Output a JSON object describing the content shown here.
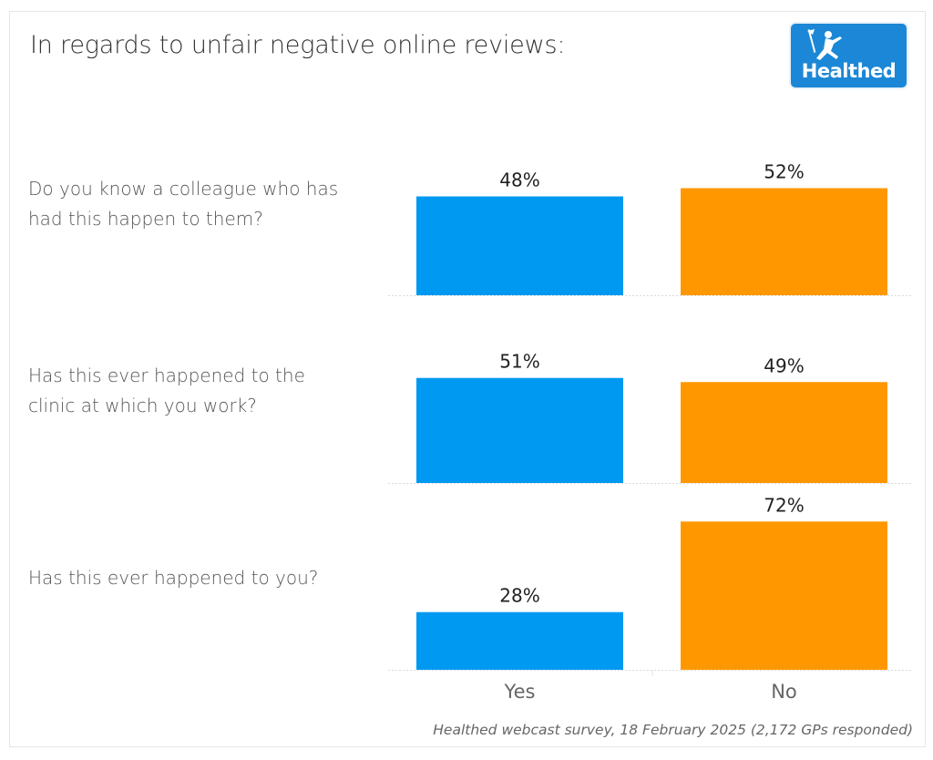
{
  "chart_data": {
    "type": "bar",
    "title": "In regards to unfair negative online reviews:",
    "categories": [
      "Yes",
      "No"
    ],
    "colors": {
      "Yes": "#0099f1",
      "No": "#ff9800"
    },
    "ylim": [
      0,
      100
    ],
    "grid": false,
    "panels": [
      {
        "question": "Do you know a colleague who has had this happen to them?",
        "values": [
          48,
          52
        ],
        "labels": [
          "48%",
          "52%"
        ]
      },
      {
        "question": "Has this ever happened to the clinic at which you work?",
        "values": [
          51,
          49
        ],
        "labels": [
          "51%",
          "49%"
        ]
      },
      {
        "question": "Has this ever happened to you?",
        "values": [
          28,
          72
        ],
        "labels": [
          "28%",
          "72%"
        ]
      }
    ],
    "xlabel": "",
    "ylabel": ""
  },
  "questions": [
    {
      "line1": "Do you know a colleague who has",
      "line2": "had this happen to them?"
    },
    {
      "line1": "Has this ever happened to the",
      "line2": "clinic at which you work?"
    },
    {
      "line1": "Has this ever happened to you?",
      "line2": ""
    }
  ],
  "logo": {
    "text": "Healthed"
  },
  "source": "Healthed webcast survey, 18 February 2025 (2,172 GPs responded)"
}
